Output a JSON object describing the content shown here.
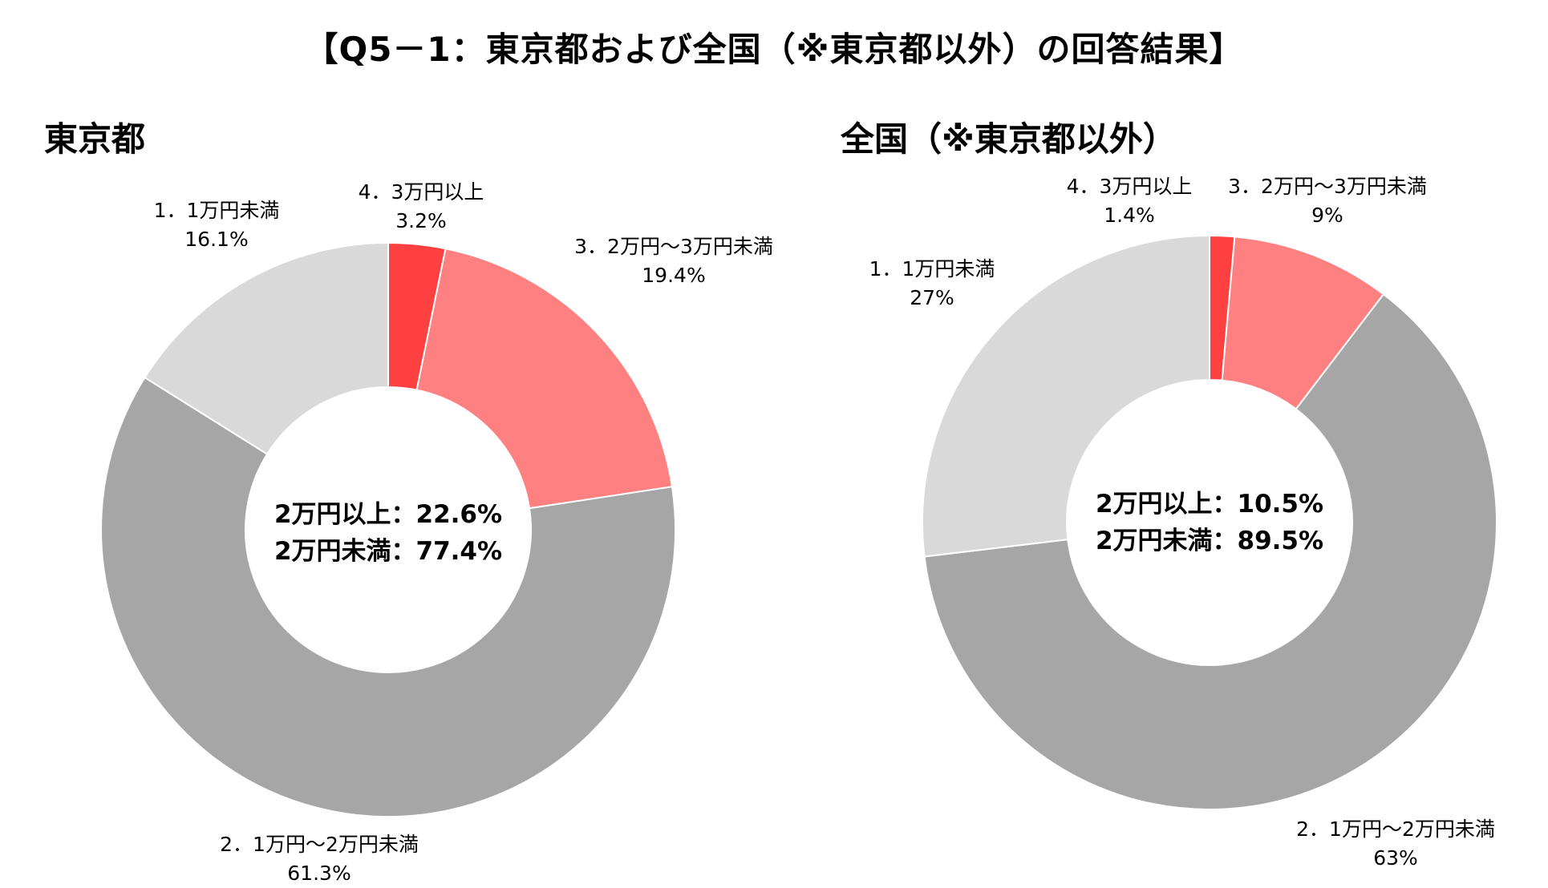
{
  "title": "【Q5－1：東京都および全国（※東京都以外）の回答結果】",
  "chart_data": [
    {
      "type": "pie",
      "title": "東京都",
      "slices": [
        {
          "label": "4．3万円以上",
          "value": 3.2,
          "value_label": "3.2%",
          "color": "#ff4040"
        },
        {
          "label": "3．2万円～3万円未満",
          "value": 19.4,
          "value_label": "19.4%",
          "color": "#ff8080"
        },
        {
          "label": "2．1万円～2万円未満",
          "value": 61.3,
          "value_label": "61.3%",
          "color": "#a6a6a6"
        },
        {
          "label": "1．1万円未満",
          "value": 16.1,
          "value_label": "16.1%",
          "color": "#d9d9d9"
        }
      ],
      "center_text": [
        "2万円以上：22.6%",
        "2万円未満：77.4%"
      ]
    },
    {
      "type": "pie",
      "title": "全国（※東京都以外）",
      "slices": [
        {
          "label": "4．3万円以上",
          "value": 1.4,
          "value_label": "1.4%",
          "color": "#ff4040"
        },
        {
          "label": "3．2万円～3万円未満",
          "value": 9,
          "value_label": "9%",
          "color": "#ff8080"
        },
        {
          "label": "2．1万円～2万円未満",
          "value": 63,
          "value_label": "63%",
          "color": "#a6a6a6"
        },
        {
          "label": "1．1万円未満",
          "value": 27,
          "value_label": "27%",
          "color": "#d9d9d9"
        }
      ],
      "center_text": [
        "2万円以上：10.5%",
        "2万円未満：89.5%"
      ]
    }
  ]
}
